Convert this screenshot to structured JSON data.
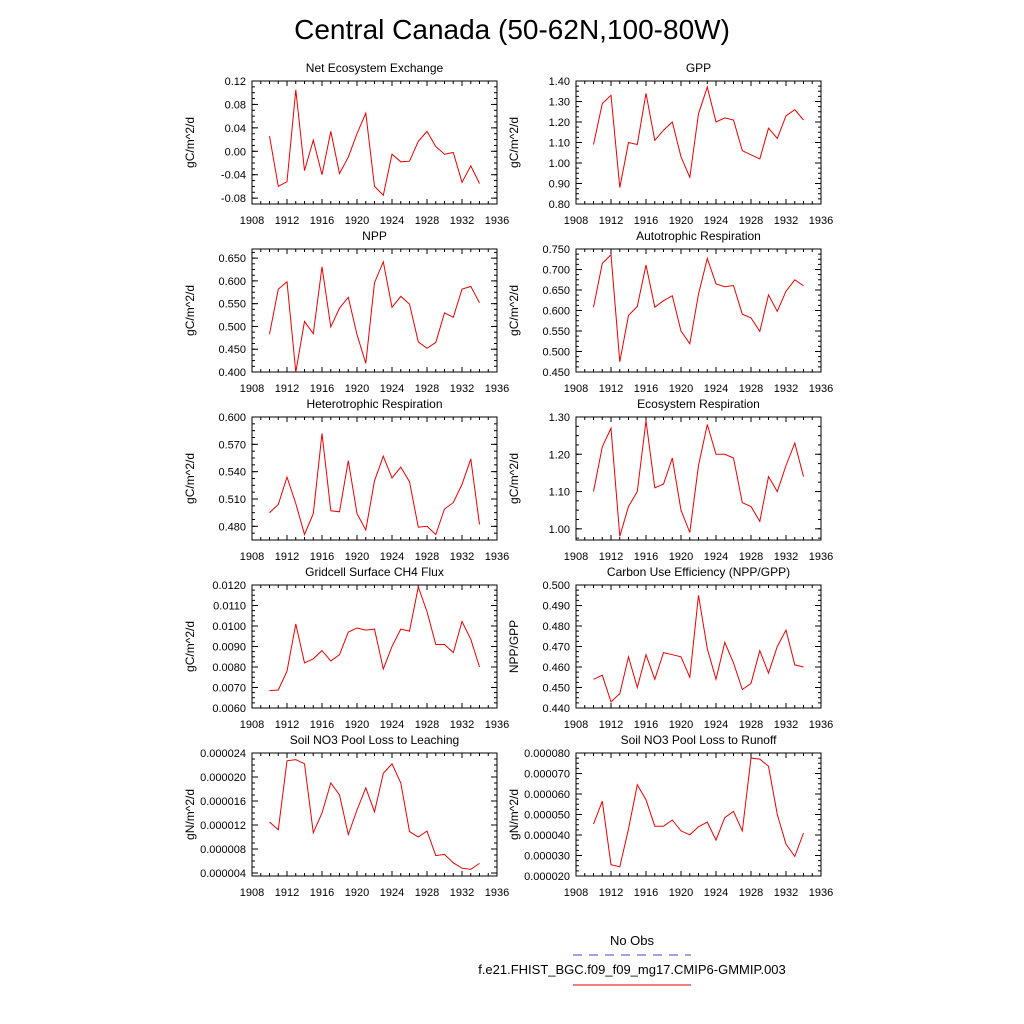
{
  "page_title": "Central Canada (50-62N,100-80W)",
  "legend": {
    "entries": [
      {
        "label": "No Obs",
        "color": "#4444cc",
        "dash": true
      },
      {
        "label": "f.e21.FHIST_BGC.f09_f09_mg17.CMIP6-GMMIP.003",
        "color": "#ee0000",
        "dash": false
      }
    ]
  },
  "chart_data": [
    {
      "type": "line",
      "title": "Net Ecosystem Exchange",
      "xlabel": "",
      "ylabel": "gC/m^2/d",
      "xlim": [
        1908,
        1936
      ],
      "ylim": [
        -0.09,
        0.12
      ],
      "xticks": [
        1908,
        1912,
        1916,
        1920,
        1924,
        1928,
        1932,
        1936
      ],
      "yticks": [
        -0.08,
        -0.04,
        0.0,
        0.04,
        0.08,
        0.12
      ],
      "ydecimals": 2,
      "x": [
        1910,
        1911,
        1912,
        1913,
        1914,
        1915,
        1916,
        1917,
        1918,
        1919,
        1920,
        1921,
        1922,
        1923,
        1924,
        1925,
        1926,
        1927,
        1928,
        1929,
        1930,
        1931,
        1932,
        1933,
        1934
      ],
      "series": [
        {
          "color": "#ee0000",
          "values": [
            0.026,
            -0.06,
            -0.052,
            0.105,
            -0.033,
            0.019,
            -0.04,
            0.034,
            -0.038,
            -0.01,
            0.03,
            0.065,
            -0.06,
            -0.075,
            -0.005,
            -0.018,
            -0.017,
            0.017,
            0.034,
            0.008,
            -0.005,
            -0.002,
            -0.053,
            -0.025,
            -0.055
          ]
        }
      ]
    },
    {
      "type": "line",
      "title": "GPP",
      "xlabel": "",
      "ylabel": "gC/m^2/d",
      "xlim": [
        1908,
        1936
      ],
      "ylim": [
        0.8,
        1.4
      ],
      "xticks": [
        1908,
        1912,
        1916,
        1920,
        1924,
        1928,
        1932,
        1936
      ],
      "yticks": [
        0.8,
        0.9,
        1.0,
        1.1,
        1.2,
        1.3,
        1.4
      ],
      "ydecimals": 2,
      "x": [
        1910,
        1911,
        1912,
        1913,
        1914,
        1915,
        1916,
        1917,
        1918,
        1919,
        1920,
        1921,
        1922,
        1923,
        1924,
        1925,
        1926,
        1927,
        1928,
        1929,
        1930,
        1931,
        1932,
        1933,
        1934
      ],
      "series": [
        {
          "color": "#ee0000",
          "values": [
            1.09,
            1.29,
            1.33,
            0.88,
            1.1,
            1.09,
            1.34,
            1.11,
            1.16,
            1.2,
            1.03,
            0.93,
            1.24,
            1.37,
            1.2,
            1.22,
            1.21,
            1.06,
            1.04,
            1.02,
            1.17,
            1.12,
            1.23,
            1.26,
            1.21
          ]
        }
      ]
    },
    {
      "type": "line",
      "title": "NPP",
      "xlabel": "",
      "ylabel": "gC/m^2/d",
      "xlim": [
        1908,
        1936
      ],
      "ylim": [
        0.4,
        0.67
      ],
      "xticks": [
        1908,
        1912,
        1916,
        1920,
        1924,
        1928,
        1932,
        1936
      ],
      "yticks": [
        0.4,
        0.45,
        0.5,
        0.55,
        0.6,
        0.65
      ],
      "ydecimals": 3,
      "x": [
        1910,
        1911,
        1912,
        1913,
        1914,
        1915,
        1916,
        1917,
        1918,
        1919,
        1920,
        1921,
        1922,
        1923,
        1924,
        1925,
        1926,
        1927,
        1928,
        1929,
        1930,
        1931,
        1932,
        1933,
        1934
      ],
      "series": [
        {
          "color": "#ee0000",
          "values": [
            0.483,
            0.582,
            0.598,
            0.4,
            0.511,
            0.484,
            0.631,
            0.499,
            0.54,
            0.564,
            0.482,
            0.419,
            0.596,
            0.642,
            0.542,
            0.566,
            0.549,
            0.466,
            0.452,
            0.465,
            0.53,
            0.52,
            0.582,
            0.588,
            0.552
          ]
        }
      ]
    },
    {
      "type": "line",
      "title": "Autotrophic Respiration",
      "xlabel": "",
      "ylabel": "gC/m^2/d",
      "xlim": [
        1908,
        1936
      ],
      "ylim": [
        0.45,
        0.75
      ],
      "xticks": [
        1908,
        1912,
        1916,
        1920,
        1924,
        1928,
        1932,
        1936
      ],
      "yticks": [
        0.45,
        0.5,
        0.55,
        0.6,
        0.65,
        0.7,
        0.75
      ],
      "ydecimals": 3,
      "x": [
        1910,
        1911,
        1912,
        1913,
        1914,
        1915,
        1916,
        1917,
        1918,
        1919,
        1920,
        1921,
        1922,
        1923,
        1924,
        1925,
        1926,
        1927,
        1928,
        1929,
        1930,
        1931,
        1932,
        1933,
        1934
      ],
      "series": [
        {
          "color": "#ee0000",
          "values": [
            0.608,
            0.715,
            0.736,
            0.475,
            0.588,
            0.61,
            0.711,
            0.608,
            0.624,
            0.636,
            0.55,
            0.519,
            0.64,
            0.727,
            0.665,
            0.658,
            0.661,
            0.591,
            0.582,
            0.549,
            0.638,
            0.598,
            0.647,
            0.675,
            0.66
          ]
        }
      ]
    },
    {
      "type": "line",
      "title": "Heterotrophic Respiration",
      "xlabel": "",
      "ylabel": "gC/m^2/d",
      "xlim": [
        1908,
        1936
      ],
      "ylim": [
        0.465,
        0.6
      ],
      "xticks": [
        1908,
        1912,
        1916,
        1920,
        1924,
        1928,
        1932,
        1936
      ],
      "yticks": [
        0.48,
        0.51,
        0.54,
        0.57,
        0.6
      ],
      "ydecimals": 3,
      "x": [
        1910,
        1911,
        1912,
        1913,
        1914,
        1915,
        1916,
        1917,
        1918,
        1919,
        1920,
        1921,
        1922,
        1923,
        1924,
        1925,
        1926,
        1927,
        1928,
        1929,
        1930,
        1931,
        1932,
        1933,
        1934
      ],
      "series": [
        {
          "color": "#ee0000",
          "values": [
            0.495,
            0.504,
            0.534,
            0.505,
            0.471,
            0.494,
            0.582,
            0.497,
            0.496,
            0.552,
            0.494,
            0.476,
            0.53,
            0.557,
            0.533,
            0.545,
            0.529,
            0.479,
            0.48,
            0.471,
            0.499,
            0.506,
            0.526,
            0.554,
            0.482
          ]
        }
      ]
    },
    {
      "type": "line",
      "title": "Ecosystem Respiration",
      "xlabel": "",
      "ylabel": "gC/m^2/d",
      "xlim": [
        1908,
        1936
      ],
      "ylim": [
        0.97,
        1.3
      ],
      "xticks": [
        1908,
        1912,
        1916,
        1920,
        1924,
        1928,
        1932,
        1936
      ],
      "yticks": [
        1.0,
        1.1,
        1.2,
        1.3
      ],
      "ydecimals": 2,
      "x": [
        1910,
        1911,
        1912,
        1913,
        1914,
        1915,
        1916,
        1917,
        1918,
        1919,
        1920,
        1921,
        1922,
        1923,
        1924,
        1925,
        1926,
        1927,
        1928,
        1929,
        1930,
        1931,
        1932,
        1933,
        1934
      ],
      "series": [
        {
          "color": "#ee0000",
          "values": [
            1.1,
            1.22,
            1.27,
            0.98,
            1.06,
            1.1,
            1.29,
            1.11,
            1.12,
            1.19,
            1.05,
            0.99,
            1.17,
            1.28,
            1.2,
            1.2,
            1.19,
            1.07,
            1.06,
            1.02,
            1.14,
            1.1,
            1.17,
            1.23,
            1.14
          ]
        }
      ]
    },
    {
      "type": "line",
      "title": "Gridcell Surface CH4 Flux",
      "xlabel": "",
      "ylabel": "gC/m^2/d",
      "xlim": [
        1908,
        1936
      ],
      "ylim": [
        0.006,
        0.012
      ],
      "xticks": [
        1908,
        1912,
        1916,
        1920,
        1924,
        1928,
        1932,
        1936
      ],
      "yticks": [
        0.006,
        0.007,
        0.008,
        0.009,
        0.01,
        0.011,
        0.012
      ],
      "ydecimals": 4,
      "x": [
        1910,
        1911,
        1912,
        1913,
        1914,
        1915,
        1916,
        1917,
        1918,
        1919,
        1920,
        1921,
        1922,
        1923,
        1924,
        1925,
        1926,
        1927,
        1928,
        1929,
        1930,
        1931,
        1932,
        1933,
        1934
      ],
      "series": [
        {
          "color": "#ee0000",
          "values": [
            0.00685,
            0.00688,
            0.0078,
            0.0101,
            0.0082,
            0.0084,
            0.0088,
            0.0083,
            0.0086,
            0.0097,
            0.0099,
            0.0098,
            0.00985,
            0.0079,
            0.009,
            0.00985,
            0.00975,
            0.0119,
            0.0107,
            0.0091,
            0.0091,
            0.0087,
            0.01022,
            0.00935,
            0.008
          ]
        }
      ]
    },
    {
      "type": "line",
      "title": "Carbon Use Efficiency (NPP/GPP)",
      "xlabel": "",
      "ylabel": "NPP/GPP",
      "xlim": [
        1908,
        1936
      ],
      "ylim": [
        0.44,
        0.5
      ],
      "xticks": [
        1908,
        1912,
        1916,
        1920,
        1924,
        1928,
        1932,
        1936
      ],
      "yticks": [
        0.44,
        0.45,
        0.46,
        0.47,
        0.48,
        0.49,
        0.5
      ],
      "ydecimals": 3,
      "x": [
        1910,
        1911,
        1912,
        1913,
        1914,
        1915,
        1916,
        1917,
        1918,
        1919,
        1920,
        1921,
        1922,
        1923,
        1924,
        1925,
        1926,
        1927,
        1928,
        1929,
        1930,
        1931,
        1932,
        1933,
        1934
      ],
      "series": [
        {
          "color": "#ee0000",
          "values": [
            0.454,
            0.456,
            0.443,
            0.447,
            0.465,
            0.45,
            0.466,
            0.454,
            0.467,
            0.466,
            0.465,
            0.455,
            0.495,
            0.469,
            0.454,
            0.472,
            0.462,
            0.449,
            0.452,
            0.468,
            0.457,
            0.47,
            0.478,
            0.461,
            0.46
          ]
        }
      ]
    },
    {
      "type": "line",
      "title": "Soil NO3 Pool Loss to Leaching",
      "xlabel": "",
      "ylabel": "gN/m^2/d",
      "xlim": [
        1908,
        1936
      ],
      "ylim": [
        3.5e-06,
        2.4e-05
      ],
      "xticks": [
        1908,
        1912,
        1916,
        1920,
        1924,
        1928,
        1932,
        1936
      ],
      "yticks": [
        4e-06,
        8e-06,
        1.2e-05,
        1.6e-05,
        2e-05,
        2.4e-05
      ],
      "ydecimals": 6,
      "x": [
        1910,
        1911,
        1912,
        1913,
        1914,
        1915,
        1916,
        1917,
        1918,
        1919,
        1920,
        1921,
        1922,
        1923,
        1924,
        1925,
        1926,
        1927,
        1928,
        1929,
        1930,
        1931,
        1932,
        1933,
        1934
      ],
      "series": [
        {
          "color": "#ee0000",
          "values": [
            1.25e-05,
            1.12e-05,
            2.27e-05,
            2.29e-05,
            2.22e-05,
            1.07e-05,
            1.4e-05,
            1.9e-05,
            1.7e-05,
            1.04e-05,
            1.45e-05,
            1.82e-05,
            1.42e-05,
            2.06e-05,
            2.22e-05,
            1.9e-05,
            1.09e-05,
            1e-05,
            1.1e-05,
            6.9e-06,
            7.1e-06,
            5.7e-06,
            4.8e-06,
            4.6e-06,
            5.6e-06
          ]
        }
      ]
    },
    {
      "type": "line",
      "title": "Soil NO3 Pool Loss to Runoff",
      "xlabel": "",
      "ylabel": "gN/m^2/d",
      "xlim": [
        1908,
        1936
      ],
      "ylim": [
        2e-05,
        8e-05
      ],
      "xticks": [
        1908,
        1912,
        1916,
        1920,
        1924,
        1928,
        1932,
        1936
      ],
      "yticks": [
        2e-05,
        3e-05,
        4e-05,
        5e-05,
        6e-05,
        7e-05,
        8e-05
      ],
      "ydecimals": 6,
      "x": [
        1910,
        1911,
        1912,
        1913,
        1914,
        1915,
        1916,
        1917,
        1918,
        1919,
        1920,
        1921,
        1922,
        1923,
        1924,
        1925,
        1926,
        1927,
        1928,
        1929,
        1930,
        1931,
        1932,
        1933,
        1934
      ],
      "series": [
        {
          "color": "#ee0000",
          "values": [
            4.53e-05,
            5.65e-05,
            2.55e-05,
            2.45e-05,
            4.3e-05,
            6.45e-05,
            5.72e-05,
            4.43e-05,
            4.43e-05,
            4.73e-05,
            4.2e-05,
            4.01e-05,
            4.4e-05,
            4.63e-05,
            3.75e-05,
            4.85e-05,
            5.15e-05,
            4.2e-05,
            7.75e-05,
            7.7e-05,
            7.35e-05,
            5e-05,
            3.55e-05,
            2.95e-05,
            4.1e-05
          ]
        }
      ]
    }
  ]
}
